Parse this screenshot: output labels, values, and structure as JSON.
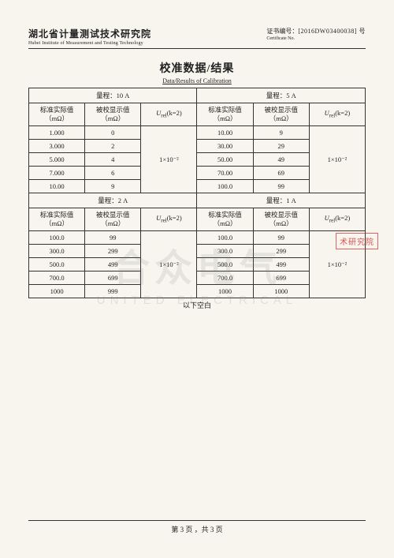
{
  "header": {
    "org_cn": "湖北省计量测试技术研究院",
    "org_en": "Hubei Institute of Measurement and Testing Technology",
    "cert_label": "证书编号：",
    "cert_no": "[2016DW03400038] 号",
    "cert_no_sub": "Certificate No."
  },
  "title": {
    "cn": "校准数据/结果",
    "en": "Data/Results of Calibration"
  },
  "col_headers": {
    "std": "标准实际值",
    "disp": "被校显示值",
    "unit": "（mΩ）",
    "urel": "U",
    "urel_sub": "rel",
    "urel_k": "(k=2)"
  },
  "sections": [
    {
      "left": {
        "range": "量程：10 A",
        "urel": "1×10⁻²",
        "rows": [
          {
            "std": "1.000",
            "disp": "0"
          },
          {
            "std": "3.000",
            "disp": "2"
          },
          {
            "std": "5.000",
            "disp": "4"
          },
          {
            "std": "7.000",
            "disp": "6"
          },
          {
            "std": "10.00",
            "disp": "9"
          }
        ]
      },
      "right": {
        "range": "量程：5 A",
        "urel": "1×10⁻²",
        "rows": [
          {
            "std": "10.00",
            "disp": "9"
          },
          {
            "std": "30.00",
            "disp": "29"
          },
          {
            "std": "50.00",
            "disp": "49"
          },
          {
            "std": "70.00",
            "disp": "69"
          },
          {
            "std": "100.0",
            "disp": "99"
          }
        ]
      }
    },
    {
      "left": {
        "range": "量程：2 A",
        "urel": "1×10⁻²",
        "rows": [
          {
            "std": "100.0",
            "disp": "99"
          },
          {
            "std": "300.0",
            "disp": "299"
          },
          {
            "std": "500.0",
            "disp": "499"
          },
          {
            "std": "700.0",
            "disp": "699"
          },
          {
            "std": "1000",
            "disp": "999"
          }
        ]
      },
      "right": {
        "range": "量程：1 A",
        "urel": "1×10⁻²",
        "rows": [
          {
            "std": "100.0",
            "disp": "99"
          },
          {
            "std": "300.0",
            "disp": "299"
          },
          {
            "std": "500.0",
            "disp": "499"
          },
          {
            "std": "700.0",
            "disp": "699"
          },
          {
            "std": "1000",
            "disp": "1000"
          }
        ]
      }
    }
  ],
  "blank_below": "以下空白",
  "watermark": {
    "cn": "合众电气",
    "en": "UNITED ELECTRICAL"
  },
  "stamp": "术研究院",
  "footer": "第 3 页 ，共 3 页",
  "styling": {
    "page_bg": "#f7f5ee",
    "text_color": "#222",
    "border_color": "#333",
    "stamp_color": "rgba(210,40,40,0.8)",
    "watermark_color": "rgba(130,130,130,0.15)",
    "title_fontsize_pt": 14,
    "body_fontsize_pt": 9,
    "table_fontsize_pt": 8.5
  }
}
